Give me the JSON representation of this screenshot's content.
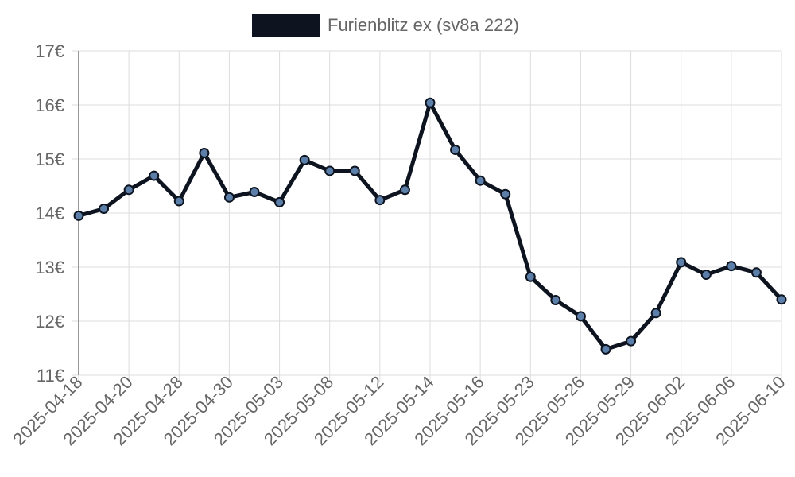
{
  "chart_data": {
    "type": "line",
    "series": [
      {
        "name": "Furienblitz ex (sv8a 222)",
        "color": "#0d1420",
        "marker_color": "#5b7fa8",
        "values": [
          13.95,
          14.08,
          14.43,
          14.69,
          14.22,
          15.11,
          14.29,
          14.39,
          14.2,
          14.98,
          14.78,
          14.78,
          14.24,
          14.43,
          16.04,
          15.17,
          14.6,
          14.35,
          12.82,
          12.39,
          12.09,
          11.48,
          11.63,
          12.15,
          13.09,
          12.86,
          13.02,
          12.9,
          12.4
        ]
      }
    ],
    "x": [
      "2025-04-18",
      "",
      "2025-04-20",
      "",
      "2025-04-28",
      "",
      "2025-04-30",
      "",
      "2025-05-03",
      "",
      "2025-05-08",
      "",
      "2025-05-12",
      "",
      "2025-05-14",
      "",
      "2025-05-16",
      "",
      "2025-05-23",
      "",
      "2025-05-26",
      "",
      "2025-05-29",
      "",
      "2025-06-02",
      "",
      "2025-06-06",
      "",
      "2025-06-10"
    ],
    "y_ticks": [
      "11€",
      "12€",
      "13€",
      "14€",
      "15€",
      "16€",
      "17€"
    ],
    "ylim": [
      11,
      17
    ],
    "grid": true,
    "legend_position": "top"
  }
}
